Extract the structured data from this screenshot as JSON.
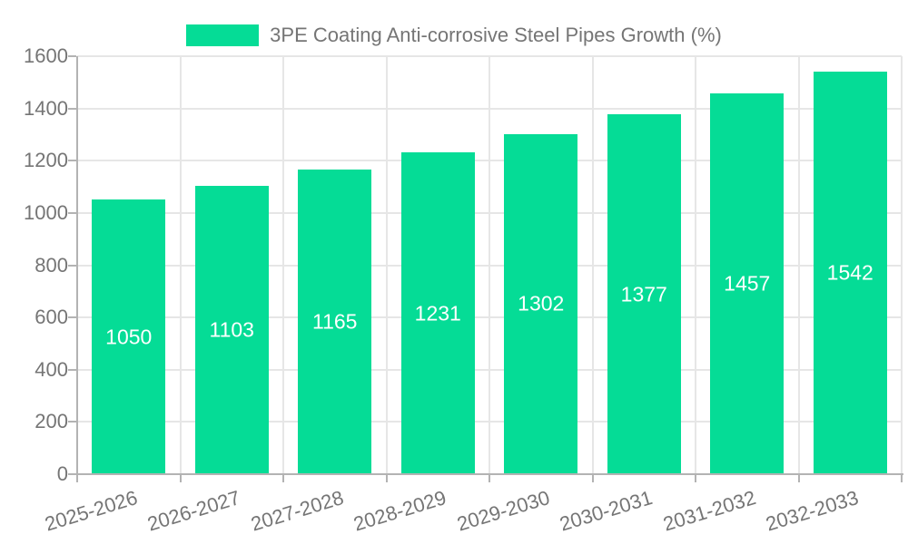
{
  "legend": {
    "label": "3PE Coating Anti-corrosive Steel Pipes Growth (%)"
  },
  "colors": {
    "bar": "#05DC96",
    "grid": "#e6e6e6",
    "axis": "#b3b3b3",
    "text": "#757575",
    "value_label": "#ffffff",
    "background": "#ffffff"
  },
  "chart_data": {
    "type": "bar",
    "title": "3PE Coating Anti-corrosive Steel Pipes Growth (%)",
    "legend_entries": [
      "3PE Coating Anti-corrosive Steel Pipes Growth (%)"
    ],
    "legend_position": "top-center",
    "categories": [
      "2025-2026",
      "2026-2027",
      "2027-2028",
      "2028-2029",
      "2029-2030",
      "2030-2031",
      "2031-2032",
      "2032-2033"
    ],
    "values": [
      1050,
      1103,
      1165,
      1231,
      1302,
      1377,
      1457,
      1542
    ],
    "value_label_position": "inside-center",
    "xlabel": "",
    "ylabel": "",
    "ylim": [
      0,
      1600
    ],
    "ytick_step": 200,
    "yticks": [
      0,
      200,
      400,
      600,
      800,
      1000,
      1200,
      1400,
      1600
    ],
    "xtick_label_rotation_deg": -17,
    "grid": true
  }
}
